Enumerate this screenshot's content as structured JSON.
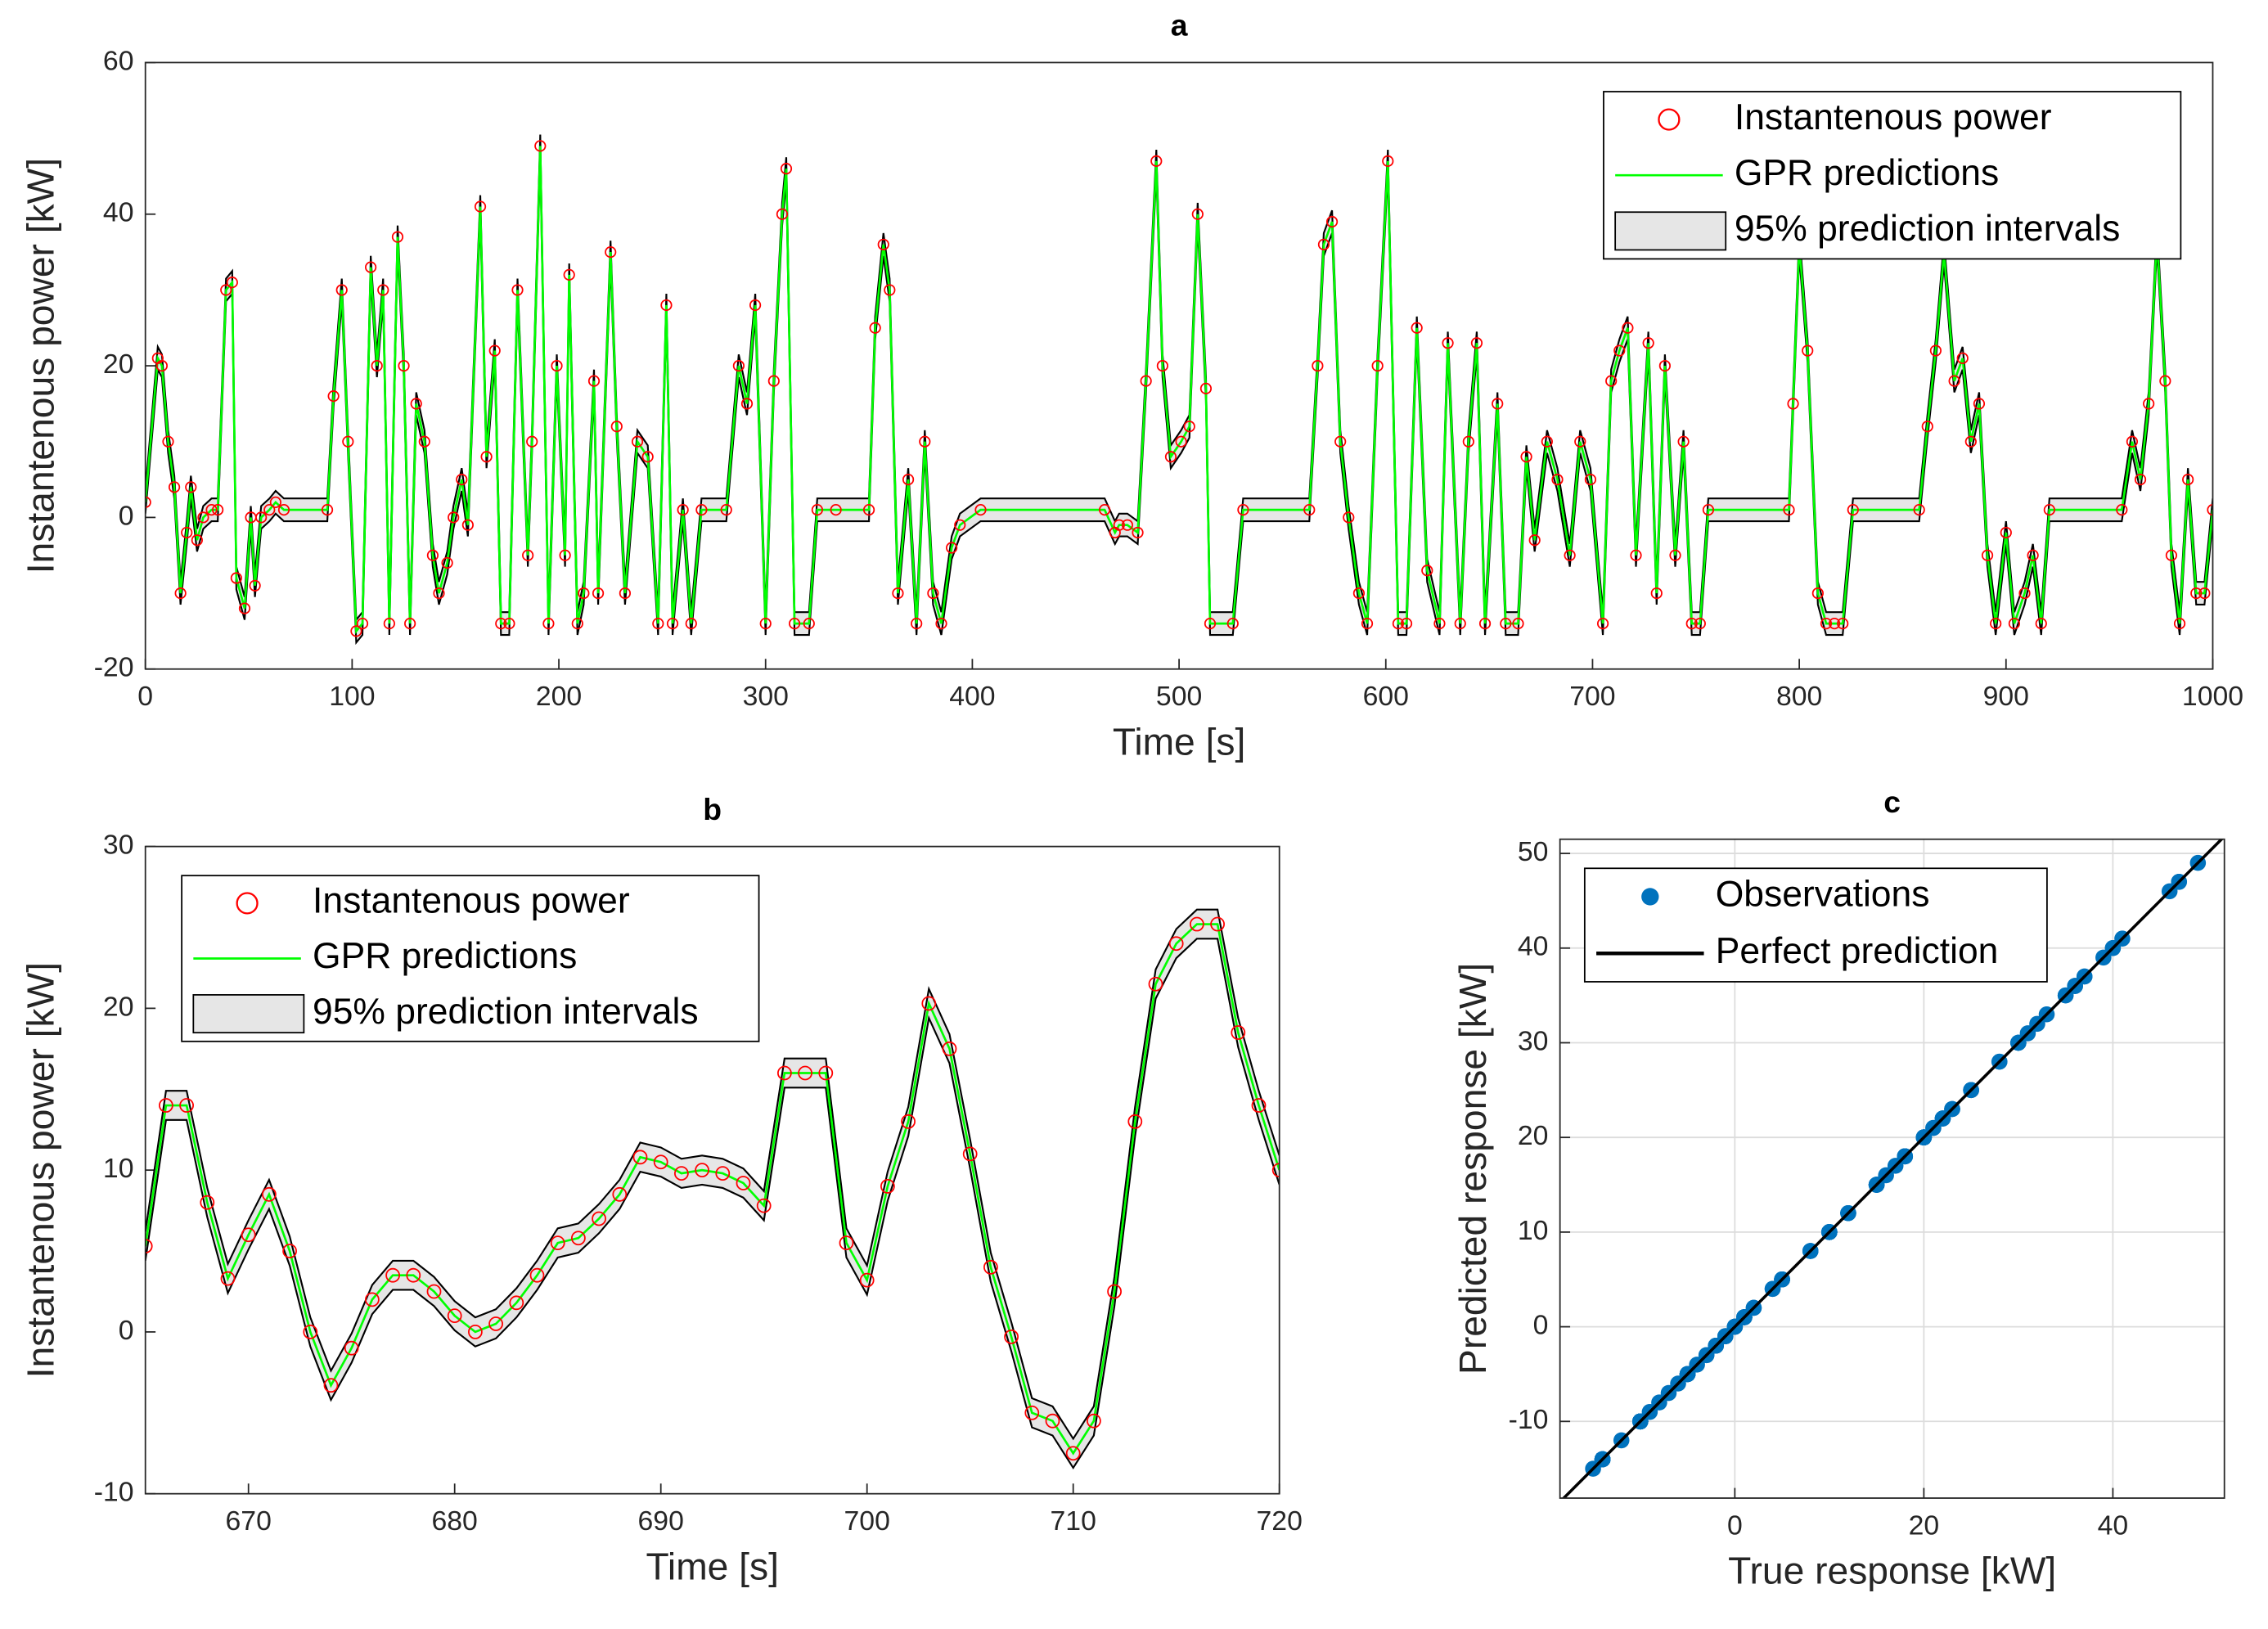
{
  "chart_data": [
    {
      "type": "line",
      "title": "a",
      "x_label": "Time [s]",
      "y_label": "Instantenous power [kW]",
      "legend": [
        {
          "name": "Instantenous power",
          "color": "#ff0000"
        },
        {
          "name": "GPR predictions",
          "color": "#00ff00"
        },
        {
          "name": "95% prediction intervals",
          "color": "#e6e6e6"
        }
      ],
      "error": 1.5,
      "xlim": [
        0,
        1000
      ],
      "ylim": [
        -20,
        60
      ],
      "xticks": [
        0,
        100,
        200,
        300,
        400,
        500,
        600,
        700,
        800,
        900,
        1000
      ],
      "yticks": [
        -20,
        0,
        20,
        40,
        60
      ],
      "x": [
        0,
        6,
        8,
        11,
        14,
        17,
        20,
        22,
        25,
        28,
        32,
        35,
        39,
        42,
        44,
        48,
        51,
        53,
        56,
        60,
        63,
        67,
        88,
        91,
        95,
        98,
        102,
        105,
        109,
        112,
        115,
        118,
        122,
        125,
        128,
        131,
        135,
        139,
        142,
        146,
        149,
        153,
        156,
        162,
        165,
        169,
        172,
        176,
        180,
        185,
        187,
        191,
        195,
        199,
        203,
        205,
        209,
        212,
        217,
        219,
        225,
        228,
        232,
        238,
        243,
        248,
        252,
        255,
        260,
        264,
        269,
        281,
        287,
        291,
        295,
        300,
        304,
        308,
        310,
        314,
        321,
        325,
        334,
        350,
        353,
        357,
        360,
        364,
        369,
        373,
        377,
        381,
        385,
        390,
        394,
        404,
        464,
        469,
        471,
        475,
        480,
        484,
        489,
        492,
        496,
        501,
        505,
        509,
        513,
        515,
        526,
        531,
        563,
        567,
        570,
        574,
        578,
        582,
        587,
        591,
        596,
        601,
        606,
        610,
        615,
        620,
        626,
        630,
        636,
        640,
        644,
        648,
        654,
        658,
        664,
        668,
        672,
        678,
        683,
        689,
        694,
        699,
        705,
        709,
        713,
        717,
        721,
        727,
        731,
        735,
        740,
        744,
        748,
        752,
        756,
        795,
        797,
        800,
        804,
        809,
        813,
        817,
        821,
        826,
        858,
        862,
        866,
        870,
        875,
        879,
        883,
        887,
        891,
        895,
        900,
        904,
        909,
        913,
        917,
        921,
        956,
        961,
        965,
        969,
        973,
        977,
        980,
        984,
        988,
        992,
        996,
        1000
      ],
      "values": [
        2,
        21,
        20,
        10,
        4,
        -10,
        -2,
        4,
        -3,
        0,
        1,
        1,
        30,
        31,
        -8,
        -12,
        0,
        -9,
        0,
        1,
        2,
        1,
        1,
        16,
        30,
        10,
        -15,
        -14,
        33,
        20,
        30,
        -14,
        37,
        20,
        -14,
        15,
        10,
        -5,
        -10,
        -6,
        0,
        5,
        -1,
        41,
        8,
        22,
        -14,
        -14,
        30,
        -5,
        10,
        49,
        -14,
        20,
        -5,
        32,
        -14,
        -10,
        18,
        -10,
        35,
        12,
        -10,
        10,
        8,
        -14,
        28,
        -14,
        1,
        -14,
        1,
        1,
        20,
        15,
        28,
        -14,
        18,
        40,
        46,
        -14,
        -14,
        1,
        1,
        1,
        25,
        36,
        30,
        -10,
        5,
        -14,
        10,
        -10,
        -14,
        -4,
        -1,
        1,
        1,
        -2,
        -1,
        -1,
        -2,
        18,
        47,
        20,
        8,
        10,
        12,
        40,
        17,
        -14,
        -14,
        1,
        1,
        20,
        36,
        39,
        10,
        0,
        -10,
        -14,
        20,
        47,
        -14,
        -14,
        25,
        -7,
        -14,
        23,
        -14,
        10,
        23,
        -14,
        15,
        -14,
        -14,
        8,
        -3,
        10,
        5,
        -5,
        10,
        5,
        -14,
        18,
        22,
        25,
        -5,
        23,
        -10,
        20,
        -5,
        10,
        -14,
        -14,
        1,
        1,
        15,
        36,
        22,
        -10,
        -14,
        -14,
        -14,
        1,
        1,
        12,
        22,
        35,
        18,
        21,
        10,
        15,
        -5,
        -14,
        -2,
        -14,
        -10,
        -5,
        -14,
        1,
        1,
        10,
        5,
        15,
        37,
        18,
        -5,
        -14,
        5,
        -10,
        -10,
        1
      ]
    },
    {
      "type": "line",
      "title": "b",
      "x_label": "Time [s]",
      "y_label": "Instantenous power [kW]",
      "legend": [
        {
          "name": "Instantenous power",
          "color": "#ff0000"
        },
        {
          "name": "GPR predictions",
          "color": "#00ff00"
        },
        {
          "name": "95% prediction intervals",
          "color": "#e6e6e6"
        }
      ],
      "error": 0.9,
      "xlim": [
        665,
        720
      ],
      "ylim": [
        -10,
        30
      ],
      "xticks": [
        670,
        680,
        690,
        700,
        710,
        720
      ],
      "yticks": [
        -10,
        0,
        10,
        20,
        30
      ],
      "x": [
        665,
        666,
        667,
        668,
        669,
        670,
        671,
        672,
        673,
        674,
        675,
        676,
        677,
        678,
        679,
        680,
        681,
        682,
        683,
        684,
        685,
        686,
        687,
        688,
        689,
        690,
        691,
        692,
        693,
        694,
        695,
        696,
        697,
        698,
        699,
        700,
        701,
        702,
        703,
        704,
        705,
        706,
        707,
        708,
        709,
        710,
        711,
        712,
        713,
        714,
        715,
        716,
        717,
        718,
        719,
        720
      ],
      "values": [
        5.3,
        14,
        14,
        8,
        3.3,
        6,
        8.5,
        5,
        0,
        -3.3,
        -1,
        2,
        3.5,
        3.5,
        2.5,
        1,
        0,
        0.5,
        1.8,
        3.5,
        5.5,
        5.8,
        7,
        8.5,
        10.8,
        10.5,
        9.8,
        10,
        9.8,
        9.2,
        7.8,
        16,
        16,
        16,
        5.5,
        3.2,
        9,
        13,
        20.3,
        17.5,
        11,
        4,
        -0.3,
        -5,
        -5.5,
        -7.5,
        -5.5,
        2.5,
        13,
        21.5,
        24,
        25.2,
        25.2,
        18.5,
        14,
        10
      ]
    },
    {
      "type": "scatter",
      "title": "c",
      "x_label": "True response [kW]",
      "y_label": "Predicted response [kW]",
      "legend": [
        {
          "name": "Observations",
          "color": "#0072bd"
        },
        {
          "name": "Perfect prediction",
          "color": "#000000"
        }
      ],
      "grid": true,
      "xlim": [
        -18.5,
        51.8
      ],
      "ylim": [
        -18.1,
        51.5
      ],
      "xticks": [
        0,
        20,
        40
      ],
      "yticks": [
        -10,
        0,
        10,
        20,
        30,
        40,
        50
      ]
    }
  ]
}
